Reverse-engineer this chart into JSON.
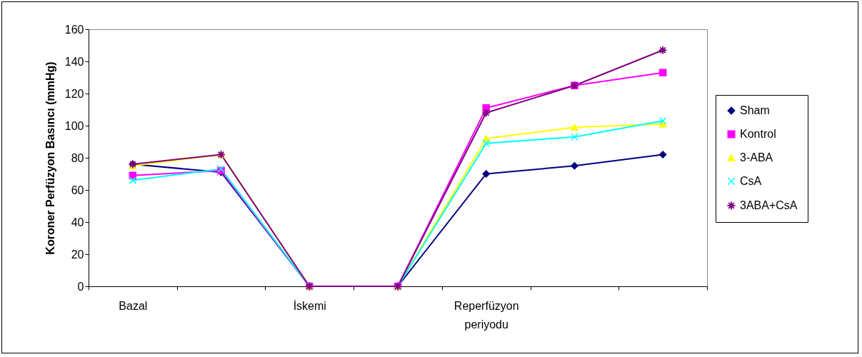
{
  "chart_data": {
    "type": "line",
    "ylabel": "Koroner Perfüzyon Basıncı (mmHg)",
    "categories": [
      "Bazal",
      null,
      "İskemi",
      null,
      "Reperfüzyon periyodu",
      null,
      null
    ],
    "ylim": [
      0,
      160
    ],
    "yticks": [
      0,
      20,
      40,
      60,
      80,
      100,
      120,
      140,
      160
    ],
    "grid": false,
    "legend": "right",
    "line_style": "solid",
    "series": [
      {
        "name": "Sham",
        "color": "#000080",
        "marker": "diamond",
        "values": [
          76,
          71,
          0,
          0,
          70,
          75,
          82
        ]
      },
      {
        "name": "Kontrol",
        "color": "#ff00ff",
        "marker": "square",
        "values": [
          69,
          72,
          0,
          0,
          111,
          125,
          133
        ]
      },
      {
        "name": "3-ABA",
        "color": "#ffff00",
        "marker": "triangle",
        "values": [
          75,
          82,
          0,
          0,
          92,
          99,
          101
        ]
      },
      {
        "name": "CsA",
        "color": "#00ffff",
        "marker": "cross",
        "values": [
          66,
          73,
          0,
          0,
          89,
          93,
          103
        ]
      },
      {
        "name": "3ABA+CsA",
        "color": "#800080",
        "marker": "star",
        "values": [
          76,
          82,
          0,
          0,
          108,
          125,
          147
        ]
      }
    ]
  }
}
